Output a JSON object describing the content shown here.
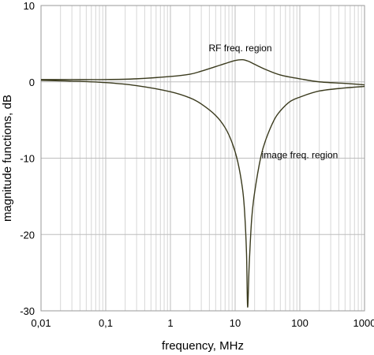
{
  "chart_data": {
    "type": "line",
    "xscale": "log",
    "xlabel": "frequency, MHz",
    "ylabel": "magnitude functions, dB",
    "xlim": [
      0.01,
      1000
    ],
    "ylim": [
      -30,
      10
    ],
    "grid": true,
    "x_ticks": [
      {
        "value": 0.01,
        "label": "0,01"
      },
      {
        "value": 0.1,
        "label": "0,1"
      },
      {
        "value": 1,
        "label": "1"
      },
      {
        "value": 10,
        "label": "10"
      },
      {
        "value": 100,
        "label": "100"
      },
      {
        "value": 1000,
        "label": "1000"
      }
    ],
    "y_ticks": [
      {
        "value": 10,
        "label": "10"
      },
      {
        "value": 0,
        "label": "0"
      },
      {
        "value": -10,
        "label": "-10"
      },
      {
        "value": -20,
        "label": "-20"
      },
      {
        "value": -30,
        "label": "-30"
      }
    ],
    "series": [
      {
        "color": "#3b3b1e",
        "x": [
          0.01,
          0.03,
          0.1,
          0.3,
          1,
          2,
          3,
          5,
          7,
          10,
          13,
          16,
          20,
          30,
          50,
          100,
          200,
          500,
          1000
        ],
        "y": [
          0.3,
          0.3,
          0.3,
          0.4,
          0.7,
          1.0,
          1.4,
          2.0,
          2.4,
          2.8,
          2.9,
          2.7,
          2.3,
          1.6,
          0.9,
          0.4,
          0.0,
          -0.2,
          -0.4
        ]
      },
      {
        "color": "#3b3b1e",
        "x": [
          0.01,
          0.03,
          0.1,
          0.3,
          1,
          2,
          3,
          5,
          7,
          9,
          11,
          13,
          14,
          15,
          15.6,
          16.5,
          18,
          20,
          25,
          30,
          40,
          50,
          70,
          100,
          200,
          500,
          1000
        ],
        "y": [
          0.2,
          0.1,
          -0.1,
          -0.5,
          -1.3,
          -2.1,
          -2.9,
          -4.4,
          -6.0,
          -8.0,
          -10.5,
          -14.0,
          -17.0,
          -22.5,
          -29.5,
          -24.0,
          -18.0,
          -14.5,
          -9.8,
          -7.5,
          -5.0,
          -3.8,
          -2.6,
          -2.0,
          -1.2,
          -0.8,
          -0.6
        ]
      }
    ],
    "annotations": [
      {
        "text": "RF freq. region",
        "x": 12,
        "y": 4.0
      },
      {
        "text": "image freq. region",
        "x": 100,
        "y": -10.0
      }
    ]
  }
}
